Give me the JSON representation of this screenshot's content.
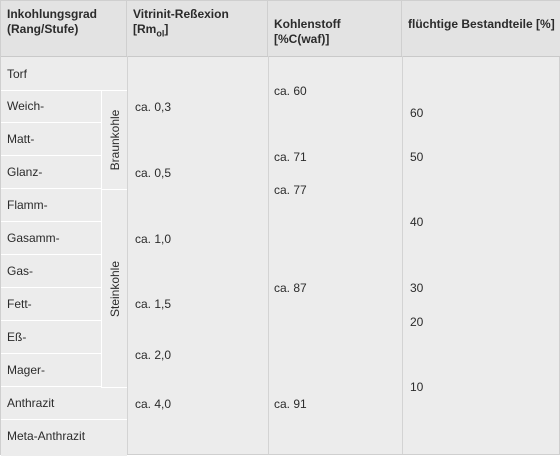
{
  "headers": {
    "rank_line1": "Inkohlungsgrad",
    "rank_line2": "(Rang/Stufe)",
    "vitrinite_line1": "Vitrinit-Reßexion",
    "vitrinite_line2_main": "[Rm",
    "vitrinite_line2_sub": "ol",
    "vitrinite_line2_end": "]",
    "carbon": "Kohlenstoff [%C(waf)]",
    "volatiles": "flüchtige Bestandteile [%]"
  },
  "ranks": [
    "Torf",
    "Weich-",
    "Matt-",
    "Glanz-",
    "Flamm-",
    "Gasamm-",
    "Gas-",
    "Fett-",
    "Eß-",
    "Mager-",
    "Anthrazit",
    "Meta-Anthrazit"
  ],
  "groups": {
    "brown": "Braunkohle",
    "hard": "Steinkohle"
  },
  "vitrinite": [
    "ca. 0,3",
    "ca. 0,5",
    "ca. 1,0",
    "ca. 1,5",
    "ca. 2,0",
    "ca. 4,0"
  ],
  "carbon": [
    "ca. 60",
    "ca. 71",
    "ca. 77",
    "ca. 87",
    "ca. 91"
  ],
  "volatiles": [
    "60",
    "50",
    "40",
    "30",
    "20",
    "10"
  ]
}
